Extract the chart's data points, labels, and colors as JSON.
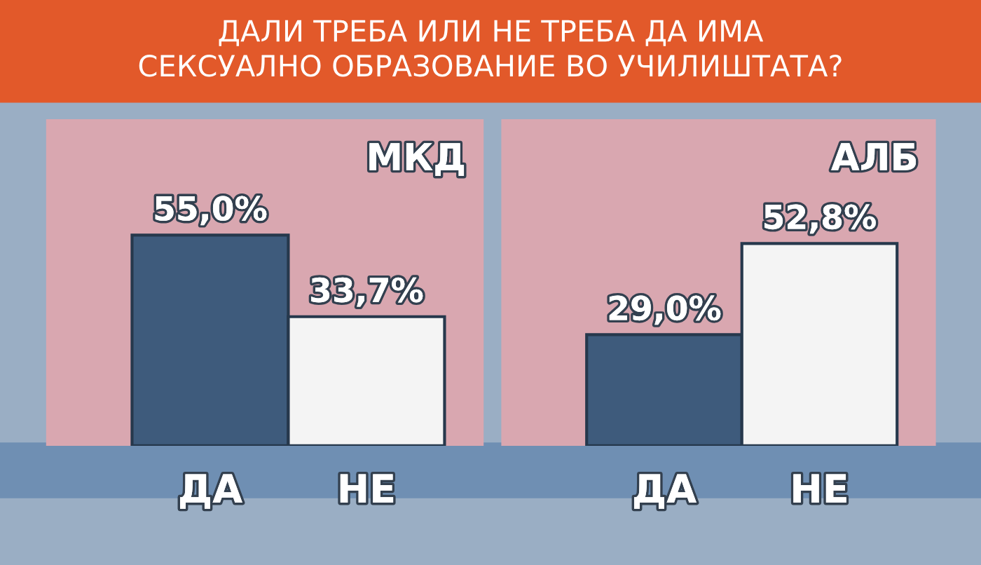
{
  "chart_data": [
    {
      "type": "bar",
      "title": "МКД",
      "annotations": [
        "ДАЛИ ТРЕБА ИЛИ НЕ ТРЕБА ДА ИМА\nСЕКСУАЛНО ОБРАЗОВАНИЕ ВО УЧИЛИШТАТА?"
      ],
      "categories": [
        "ДА",
        "НЕ"
      ],
      "values": [
        55.0,
        33.7
      ],
      "value_labels": [
        "55,0%",
        "33,7%"
      ],
      "colors": [
        "#3e5b7c",
        "#f4f4f4"
      ],
      "grid": false,
      "legend": false
    },
    {
      "type": "bar",
      "title": "АЛБ",
      "categories": [
        "ДА",
        "НЕ"
      ],
      "values": [
        29.0,
        52.8
      ],
      "value_labels": [
        "29,0%",
        "52,8%"
      ],
      "colors": [
        "#3e5b7c",
        "#f4f4f4"
      ],
      "grid": false,
      "legend": false
    }
  ]
}
